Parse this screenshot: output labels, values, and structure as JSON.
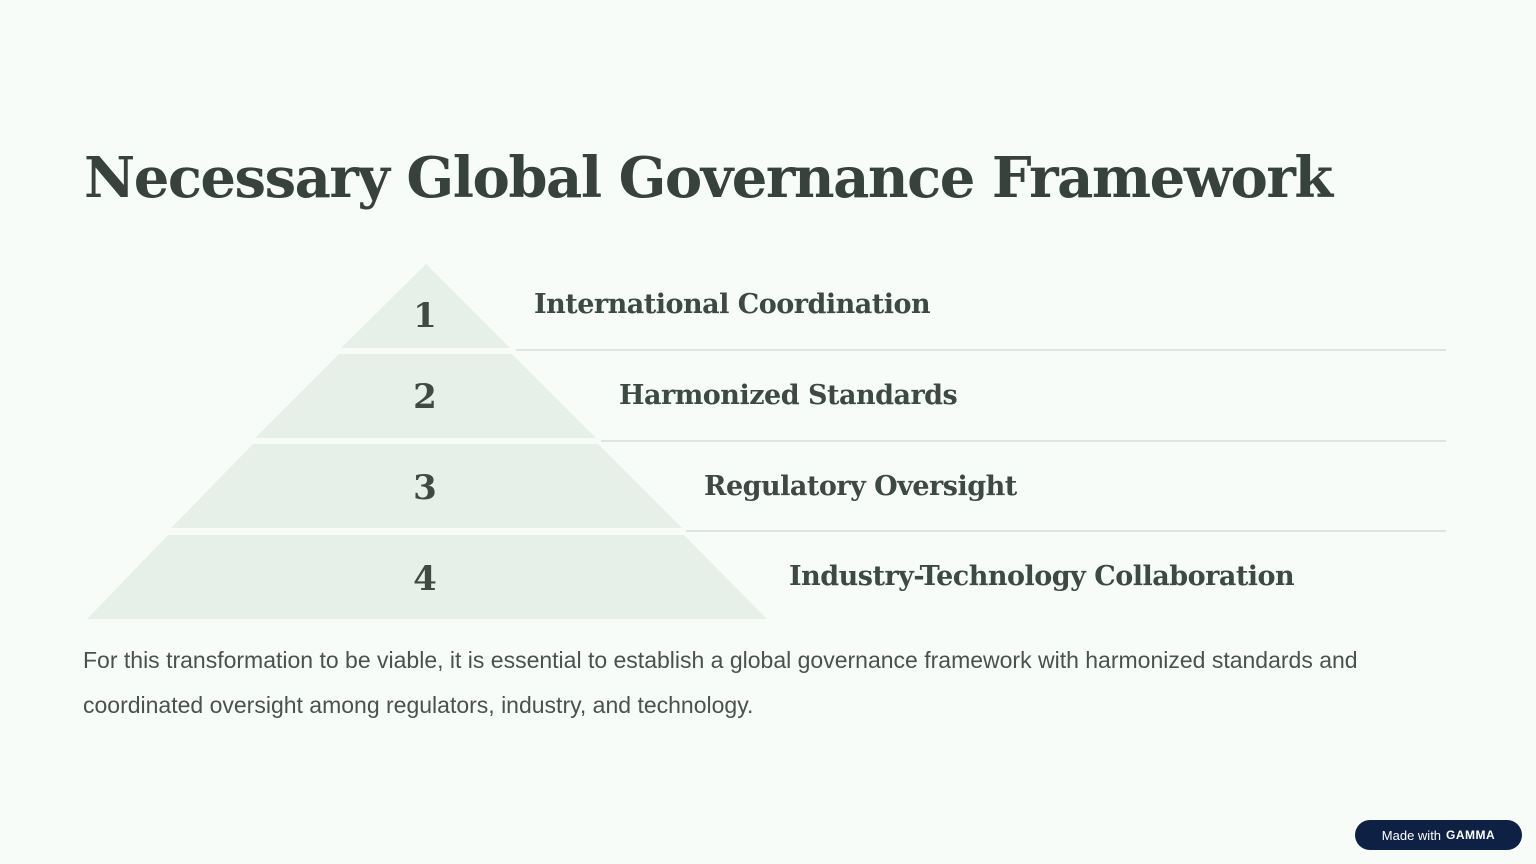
{
  "slide": {
    "title": "Necessary Global Governance Framework",
    "tiers": [
      {
        "number": "1",
        "label": "International Coordination"
      },
      {
        "number": "2",
        "label": "Harmonized Standards"
      },
      {
        "number": "3",
        "label": "Regulatory Oversight"
      },
      {
        "number": "4",
        "label": "Industry-Technology Collaboration"
      }
    ],
    "body": "For this transformation to be viable, it is essential to establish a global governance framework with harmonized standards and coordinated oversight among regulators, industry, and technology."
  },
  "badge": {
    "prefix": "Made with",
    "brand": "GAMMA"
  },
  "colors": {
    "background": "#f8fcf8",
    "pyramid_fill": "#e6f0e8",
    "text": "#38423d",
    "badge_bg": "#0e2144"
  }
}
